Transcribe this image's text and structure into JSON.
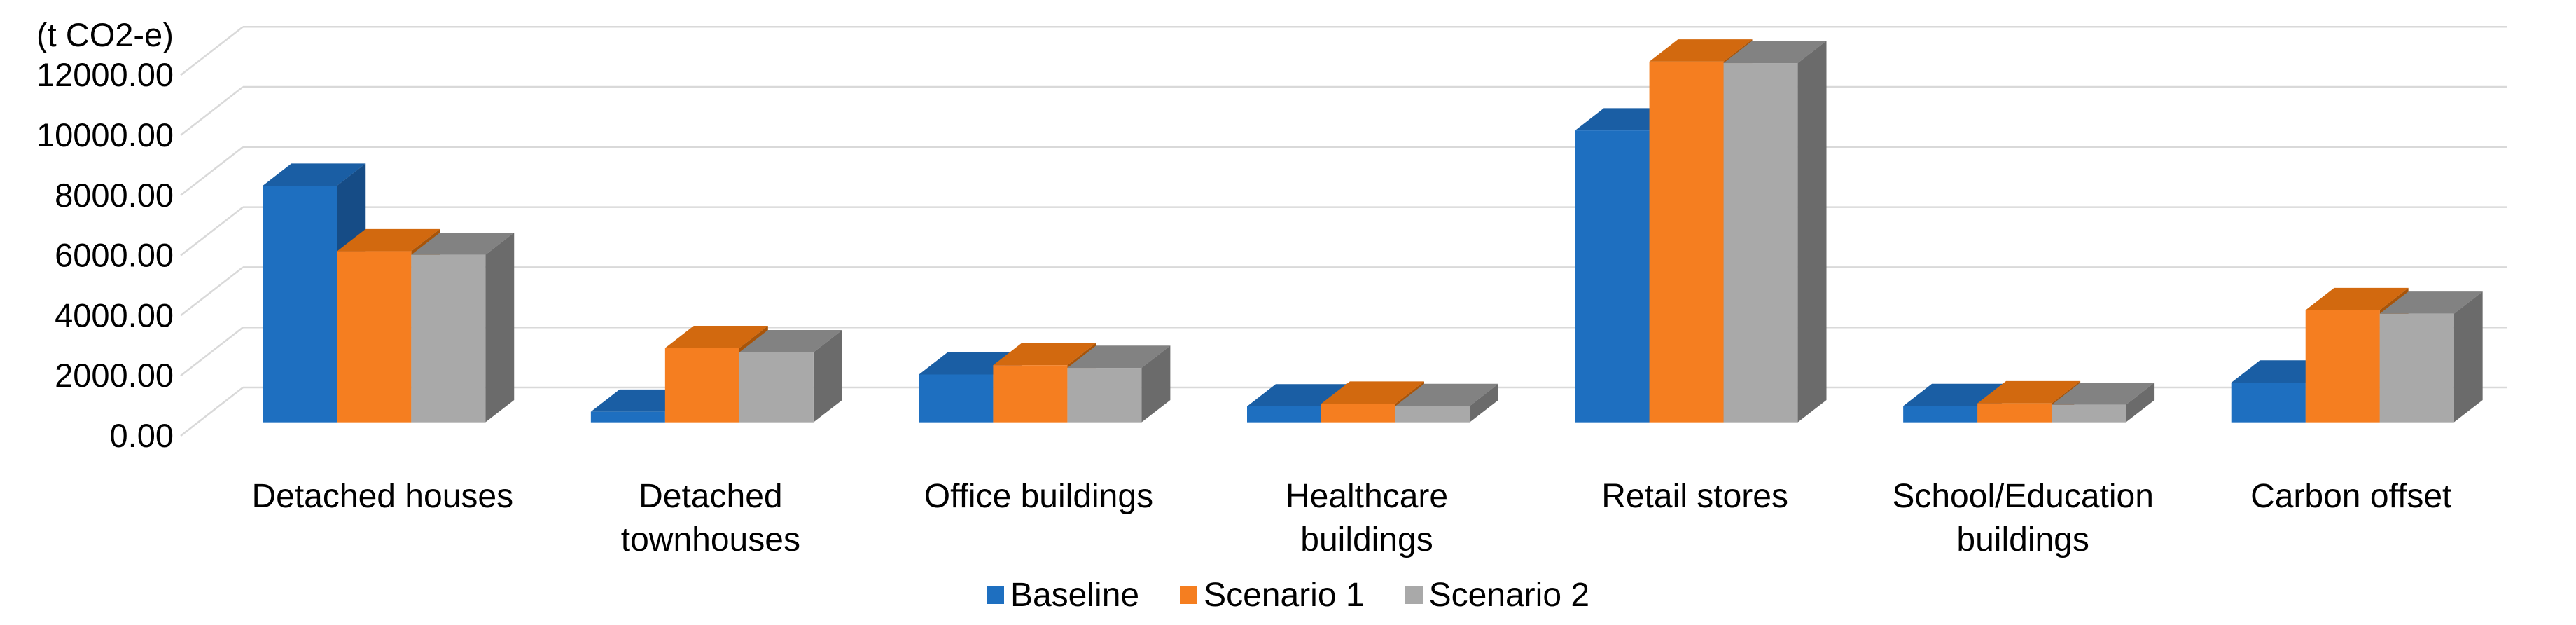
{
  "chart_data": {
    "type": "bar",
    "projection": "3d-oblique-columns",
    "unit_label": "(t CO2-e)",
    "categories": [
      "Detached houses",
      "Detached townhouses",
      "Office buildings",
      "Healthcare buildings",
      "Retail stores",
      "School/Education buildings",
      "Carbon offset"
    ],
    "category_label_lines": [
      [
        "Detached houses"
      ],
      [
        "Detached",
        "townhouses"
      ],
      [
        "Office buildings"
      ],
      [
        "Healthcare",
        "buildings"
      ],
      [
        "Retail stores"
      ],
      [
        "School/Education",
        "buildings"
      ],
      [
        "Carbon offset"
      ]
    ],
    "series": [
      {
        "name": "Baseline",
        "color": "#1E6FC0",
        "color_top": "#1A5EA4",
        "color_side": "#164C86",
        "values": [
          7870,
          350,
          1590,
          530,
          9710,
          540,
          1320
        ]
      },
      {
        "name": "Scenario 1",
        "color": "#F57E20",
        "color_top": "#D2690F",
        "color_side": "#A85409",
        "values": [
          5690,
          2470,
          1900,
          620,
          12000,
          630,
          3730
        ]
      },
      {
        "name": "Scenario 2",
        "color": "#A9A9A9",
        "color_top": "#828282",
        "color_side": "#6B6B6B",
        "values": [
          5570,
          2330,
          1810,
          540,
          11950,
          580,
          3610
        ]
      }
    ],
    "y_axis": {
      "min": 0,
      "max": 12000,
      "step": 2000,
      "tick_labels": [
        "0.00",
        "2000.00",
        "4000.00",
        "6000.00",
        "8000.00",
        "10000.00",
        "12000.00"
      ]
    },
    "legend": {
      "position": "bottom",
      "items": [
        "Baseline",
        "Scenario 1",
        "Scenario 2"
      ]
    },
    "grid": true,
    "gridline_color": "#D9D9D9",
    "background": "#FFFFFF",
    "text_color": "#000000"
  }
}
